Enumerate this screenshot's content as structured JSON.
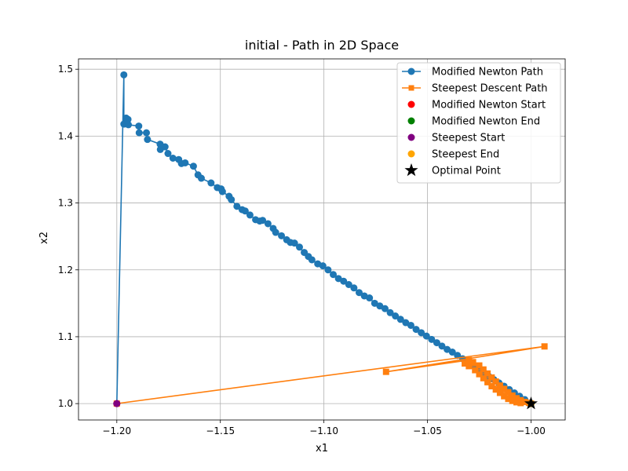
{
  "chart_data": {
    "type": "line",
    "title": "initial - Path in 2D Space",
    "xlabel": "x1",
    "ylabel": "x2",
    "xlim": [
      -1.2185,
      -0.9835
    ],
    "ylim": [
      0.9755,
      1.5155
    ],
    "xticks": [
      -1.2,
      -1.15,
      -1.1,
      -1.05,
      -1.0
    ],
    "xtick_labels": [
      "−1.20",
      "−1.15",
      "−1.10",
      "−1.05",
      "−1.00"
    ],
    "yticks": [
      1.0,
      1.1,
      1.2,
      1.3,
      1.4,
      1.5
    ],
    "ytick_labels": [
      "1.0",
      "1.1",
      "1.2",
      "1.3",
      "1.4",
      "1.5"
    ],
    "grid": true,
    "legend_position": "top-right",
    "series": [
      {
        "name": "Modified Newton Path",
        "kind": "line",
        "marker": "circle",
        "color": "#1f77b4",
        "x": [
          -1.2,
          -1.1966,
          -1.1966,
          -1.1955,
          -1.1965,
          -1.1946,
          -1.1944,
          -1.1894,
          -1.1892,
          -1.1857,
          -1.1852,
          -1.1791,
          -1.179,
          -1.1767,
          -1.1753,
          -1.1729,
          -1.1701,
          -1.1688,
          -1.167,
          -1.163,
          -1.1608,
          -1.1592,
          -1.1545,
          -1.1515,
          -1.1496,
          -1.149,
          -1.1458,
          -1.1447,
          -1.142,
          -1.1395,
          -1.138,
          -1.1357,
          -1.133,
          -1.131,
          -1.1296,
          -1.127,
          -1.1245,
          -1.1233,
          -1.1205,
          -1.118,
          -1.1162,
          -1.1142,
          -1.1118,
          -1.1095,
          -1.1075,
          -1.1058,
          -1.103,
          -1.1005,
          -1.098,
          -1.0955,
          -1.093,
          -1.0905,
          -1.088,
          -1.0855,
          -1.083,
          -1.0805,
          -1.078,
          -1.0755,
          -1.073,
          -1.0705,
          -1.068,
          -1.0655,
          -1.063,
          -1.0605,
          -1.058,
          -1.0555,
          -1.053,
          -1.0505,
          -1.048,
          -1.0455,
          -1.043,
          -1.0405,
          -1.038,
          -1.0355,
          -1.033,
          -1.0305,
          -1.028,
          -1.0255,
          -1.023,
          -1.0205,
          -1.018,
          -1.0155,
          -1.013,
          -1.0105,
          -1.008,
          -1.0055,
          -1.003,
          -1.0005,
          -1.0
        ],
        "y": [
          1.0,
          1.4916,
          1.418,
          1.427,
          1.418,
          1.425,
          1.417,
          1.415,
          1.405,
          1.405,
          1.395,
          1.388,
          1.38,
          1.384,
          1.374,
          1.367,
          1.365,
          1.359,
          1.36,
          1.355,
          1.342,
          1.337,
          1.33,
          1.323,
          1.321,
          1.317,
          1.31,
          1.305,
          1.295,
          1.29,
          1.288,
          1.282,
          1.275,
          1.273,
          1.274,
          1.269,
          1.262,
          1.256,
          1.251,
          1.245,
          1.241,
          1.24,
          1.234,
          1.226,
          1.22,
          1.215,
          1.209,
          1.206,
          1.2,
          1.193,
          1.187,
          1.183,
          1.178,
          1.173,
          1.166,
          1.161,
          1.158,
          1.15,
          1.146,
          1.142,
          1.136,
          1.131,
          1.126,
          1.121,
          1.117,
          1.111,
          1.106,
          1.101,
          1.096,
          1.091,
          1.086,
          1.081,
          1.077,
          1.072,
          1.067,
          1.062,
          1.057,
          1.052,
          1.047,
          1.041,
          1.036,
          1.031,
          1.026,
          1.021,
          1.016,
          1.011,
          1.006,
          1.001,
          1.0
        ]
      },
      {
        "name": "Steepest Descent Path",
        "kind": "line",
        "marker": "square",
        "color": "#ff7f0e",
        "x": [
          -1.2,
          -0.9935,
          -1.07,
          -1.03,
          -1.032,
          -1.028,
          -1.03,
          -1.025,
          -1.027,
          -1.023,
          -1.025,
          -1.021,
          -1.023,
          -1.019,
          -1.021,
          -1.017,
          -1.019,
          -1.015,
          -1.017,
          -1.013,
          -1.015,
          -1.011,
          -1.013,
          -1.009,
          -1.011,
          -1.007,
          -1.009,
          -1.005,
          -1.007,
          -1.003,
          -1.005,
          -1.001,
          -1.0
        ],
        "y": [
          1.0,
          1.0855,
          1.0475,
          1.065,
          1.06,
          1.062,
          1.056,
          1.057,
          1.05,
          1.051,
          1.044,
          1.045,
          1.038,
          1.039,
          1.032,
          1.033,
          1.026,
          1.027,
          1.021,
          1.022,
          1.016,
          1.017,
          1.011,
          1.012,
          1.007,
          1.008,
          1.004,
          1.005,
          1.002,
          1.0025,
          1.0008,
          1.001,
          1.0
        ]
      },
      {
        "name": "Modified Newton Start",
        "kind": "point",
        "marker": "circle",
        "color": "#ff0000",
        "x": [
          -1.2
        ],
        "y": [
          1.0
        ]
      },
      {
        "name": "Modified Newton End",
        "kind": "point",
        "marker": "circle",
        "color": "#008000",
        "x": [
          -1.0
        ],
        "y": [
          1.0
        ]
      },
      {
        "name": "Steepest Start",
        "kind": "point",
        "marker": "circle",
        "color": "#800080",
        "x": [
          -1.2
        ],
        "y": [
          1.0
        ]
      },
      {
        "name": "Steepest End",
        "kind": "point",
        "marker": "circle",
        "color": "#ffa500",
        "x": [
          -1.0
        ],
        "y": [
          1.0
        ]
      },
      {
        "name": "Optimal Point",
        "kind": "point",
        "marker": "star",
        "color": "#000000",
        "x": [
          -1.0
        ],
        "y": [
          1.0
        ]
      }
    ]
  }
}
